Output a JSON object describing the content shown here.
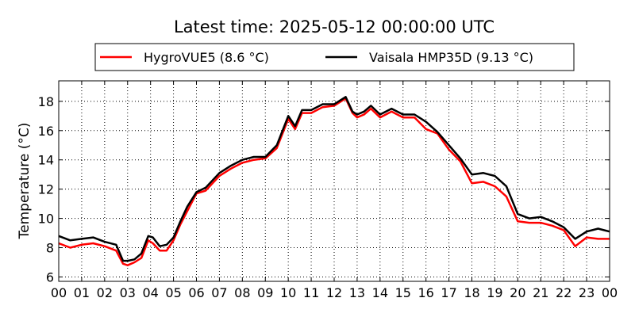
{
  "chart_data": {
    "type": "line",
    "title": "Latest time: 2025-05-12 00:00:00 UTC",
    "xlabel": "",
    "ylabel": "Temperature (°C)",
    "xlim": [
      0,
      24
    ],
    "ylim": [
      5.7,
      19.4
    ],
    "x_tick_labels": [
      "00",
      "01",
      "02",
      "03",
      "04",
      "05",
      "06",
      "07",
      "08",
      "09",
      "10",
      "11",
      "12",
      "13",
      "14",
      "15",
      "16",
      "17",
      "18",
      "19",
      "20",
      "21",
      "22",
      "23",
      "00"
    ],
    "y_ticks": [
      6,
      8,
      10,
      12,
      14,
      16,
      18
    ],
    "grid": true,
    "legend_position": "top-center",
    "series": [
      {
        "name": "HygroVUE5 (8.6 °C)",
        "color": "#ff0000",
        "x": [
          0,
          0.5,
          1,
          1.5,
          2,
          2.5,
          2.8,
          3,
          3.3,
          3.6,
          3.9,
          4.1,
          4.4,
          4.7,
          5,
          5.3,
          5.6,
          6,
          6.4,
          7,
          7.5,
          8,
          8.5,
          9,
          9.5,
          10,
          10.3,
          10.6,
          11,
          11.5,
          12,
          12.5,
          12.8,
          13,
          13.3,
          13.6,
          14,
          14.5,
          15,
          15.5,
          16,
          16.5,
          17,
          17.5,
          18,
          18.5,
          19,
          19.5,
          20,
          20.5,
          21,
          21.5,
          22,
          22.5,
          23,
          23.5,
          24
        ],
        "y": [
          8.3,
          8.0,
          8.2,
          8.3,
          8.1,
          7.8,
          6.9,
          6.8,
          7.0,
          7.3,
          8.5,
          8.3,
          7.8,
          7.8,
          8.5,
          9.6,
          10.5,
          11.7,
          11.9,
          12.9,
          13.4,
          13.8,
          14.0,
          14.1,
          14.8,
          16.8,
          16.1,
          17.2,
          17.2,
          17.6,
          17.7,
          18.2,
          17.2,
          16.9,
          17.1,
          17.5,
          16.9,
          17.3,
          16.9,
          16.9,
          16.1,
          15.8,
          14.7,
          13.9,
          12.4,
          12.5,
          12.2,
          11.5,
          9.8,
          9.7,
          9.7,
          9.5,
          9.2,
          8.1,
          8.7,
          8.6,
          8.6
        ]
      },
      {
        "name": "Vaisala HMP35D (9.13 °C)",
        "color": "#000000",
        "x": [
          0,
          0.5,
          1,
          1.5,
          2,
          2.5,
          2.8,
          3,
          3.3,
          3.6,
          3.9,
          4.1,
          4.4,
          4.7,
          5,
          5.3,
          5.6,
          6,
          6.4,
          7,
          7.5,
          8,
          8.5,
          9,
          9.5,
          10,
          10.3,
          10.6,
          11,
          11.5,
          12,
          12.5,
          12.8,
          13,
          13.3,
          13.6,
          14,
          14.5,
          15,
          15.5,
          16,
          16.5,
          17,
          17.5,
          18,
          18.5,
          19,
          19.5,
          20,
          20.5,
          21,
          21.5,
          22,
          22.5,
          23,
          23.5,
          24
        ],
        "y": [
          8.8,
          8.5,
          8.6,
          8.7,
          8.4,
          8.2,
          7.1,
          7.1,
          7.2,
          7.6,
          8.8,
          8.7,
          8.1,
          8.2,
          8.7,
          9.8,
          10.8,
          11.8,
          12.1,
          13.1,
          13.6,
          14.0,
          14.2,
          14.2,
          15.0,
          17.0,
          16.3,
          17.4,
          17.4,
          17.8,
          17.8,
          18.3,
          17.3,
          17.1,
          17.3,
          17.7,
          17.1,
          17.5,
          17.1,
          17.1,
          16.6,
          15.9,
          15.0,
          14.1,
          13.0,
          13.1,
          12.9,
          12.2,
          10.3,
          10.0,
          10.1,
          9.8,
          9.4,
          8.6,
          9.1,
          9.3,
          9.1
        ]
      }
    ]
  }
}
